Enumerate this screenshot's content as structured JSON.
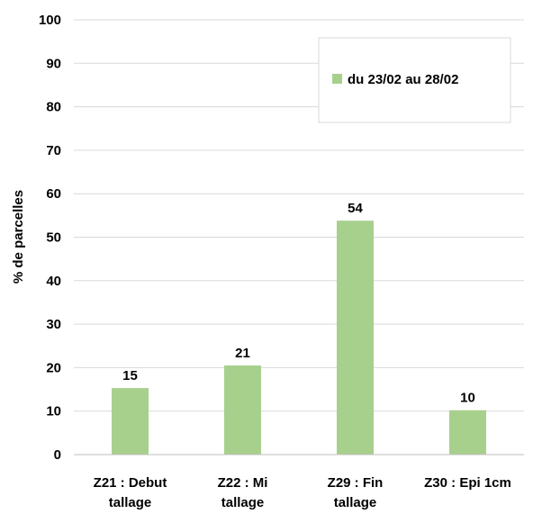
{
  "chart_data": {
    "type": "bar",
    "categories": [
      [
        "Z21 : Debut",
        "tallage"
      ],
      [
        "Z22 : Mi",
        "tallage"
      ],
      [
        "Z29 : Fin",
        "tallage"
      ],
      [
        "Z30 : Epi 1cm"
      ]
    ],
    "series": [
      {
        "name": "du 23/02 au 28/02",
        "values": [
          15.3,
          20.5,
          53.8,
          10.2
        ],
        "labels": [
          "15",
          "21",
          "54",
          "10"
        ]
      }
    ],
    "ylabel": "% de parcelles",
    "xlabel": "",
    "ylim": [
      0,
      100
    ],
    "yticks": [
      "0",
      "10",
      "20",
      "30",
      "40",
      "50",
      "60",
      "70",
      "80",
      "90",
      "100"
    ],
    "grid": true,
    "legend": "top-right",
    "colors": {
      "bar": "#a8d08d",
      "grid": "#d9d9d9",
      "axis": "#bfbfbf"
    }
  }
}
